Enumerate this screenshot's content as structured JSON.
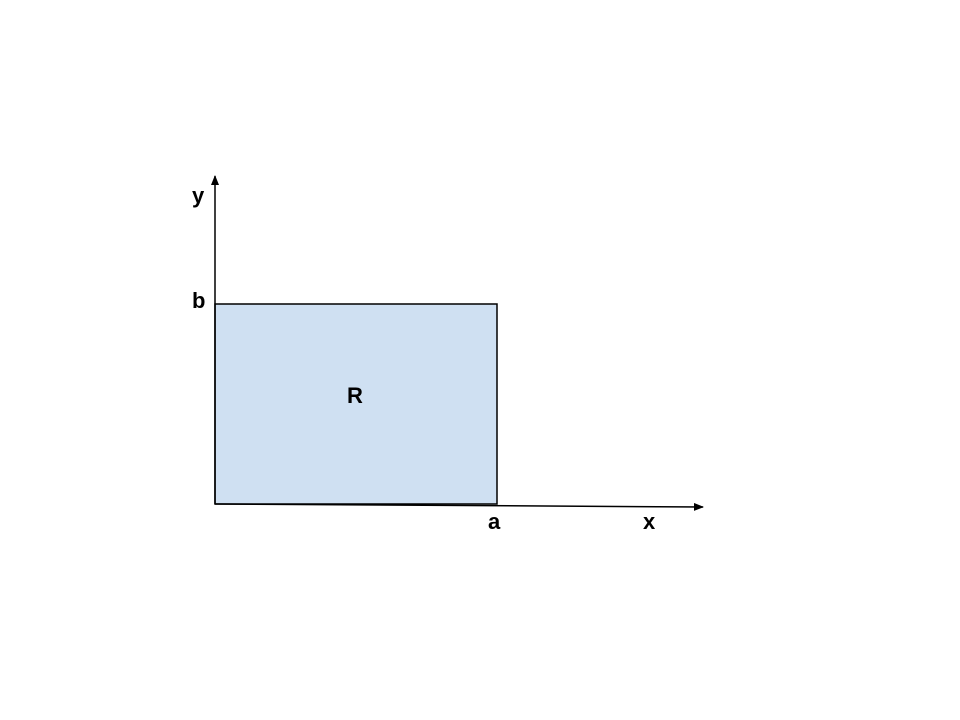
{
  "diagram": {
    "axes": {
      "x_label": "x",
      "y_label": "y"
    },
    "region": {
      "label": "R",
      "fill_color": "#cfe0f2",
      "x_end_label": "a",
      "y_end_label": "b"
    },
    "colors": {
      "stroke": "#000000",
      "background": "#ffffff"
    }
  }
}
